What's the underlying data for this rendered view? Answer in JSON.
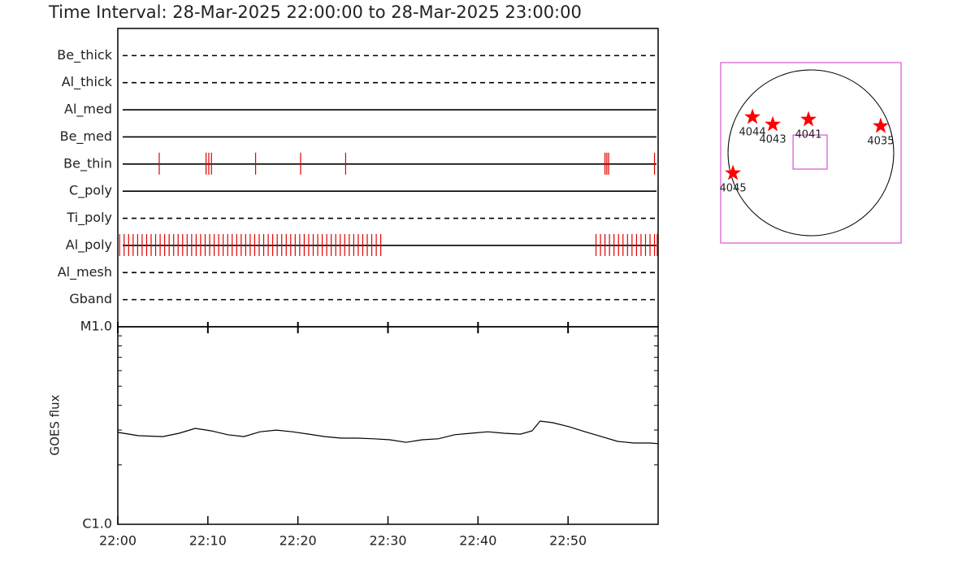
{
  "chart_data": [
    {
      "type": "timeline",
      "title": "Time Interval: 28-Mar-2025 22:00:00 to 28-Mar-2025 23:00:00",
      "xlim": [
        0,
        60
      ],
      "color": "#e00000",
      "rows": [
        {
          "name": "Be_thick",
          "style": "dashed",
          "x": []
        },
        {
          "name": "Al_thick",
          "style": "dashed",
          "x": []
        },
        {
          "name": "Al_med",
          "style": "solid",
          "x": []
        },
        {
          "name": "Be_med",
          "style": "solid",
          "x": []
        },
        {
          "name": "Be_thin",
          "style": "solid",
          "x": [
            4.6,
            9.8,
            10.1,
            10.4,
            15.3,
            20.3,
            25.3,
            54.1,
            54.3,
            54.5,
            59.6
          ]
        },
        {
          "name": "C_poly",
          "style": "solid",
          "x": []
        },
        {
          "name": "Ti_poly",
          "style": "dashed",
          "x": []
        },
        {
          "name": "Al_poly",
          "style": "solid",
          "x": [
            0.2,
            0.7,
            1.2,
            1.7,
            2.2,
            2.7,
            3.2,
            3.7,
            4.2,
            4.7,
            5.2,
            5.7,
            6.2,
            6.7,
            7.2,
            7.7,
            8.2,
            8.7,
            9.2,
            9.7,
            10.2,
            10.7,
            11.2,
            11.7,
            12.2,
            12.7,
            13.2,
            13.7,
            14.2,
            14.7,
            15.2,
            15.7,
            16.2,
            16.7,
            17.2,
            17.7,
            18.2,
            18.7,
            19.2,
            19.7,
            20.2,
            20.7,
            21.2,
            21.7,
            22.2,
            22.7,
            23.2,
            23.7,
            24.2,
            24.7,
            25.2,
            25.7,
            26.2,
            26.7,
            27.2,
            27.7,
            28.2,
            28.7,
            29.2,
            53.1,
            53.6,
            54.1,
            54.6,
            55.1,
            55.6,
            56.1,
            56.6,
            57.1,
            57.6,
            58.1,
            58.6,
            59.1,
            59.6,
            59.9
          ]
        },
        {
          "name": "Al_mesh",
          "style": "dashed",
          "x": []
        },
        {
          "name": "Gband",
          "style": "dashed",
          "x": []
        }
      ]
    },
    {
      "type": "line",
      "ylabel": "GOES flux",
      "log": true,
      "color": "#000000",
      "xlim": [
        0,
        60
      ],
      "xticks": [
        {
          "value": 0,
          "label": "22:00"
        },
        {
          "value": 10,
          "label": "22:10"
        },
        {
          "value": 20,
          "label": "22:20"
        },
        {
          "value": 30,
          "label": "22:30"
        },
        {
          "value": 40,
          "label": "22:40"
        },
        {
          "value": 50,
          "label": "22:50"
        }
      ],
      "ylim": [
        1e-06,
        1e-05
      ],
      "yticks": [
        {
          "value": 1e-06,
          "label": "C1.0"
        },
        {
          "value": 1e-05,
          "label": "M1.0"
        }
      ],
      "yminorticks": [
        2e-06,
        3e-06,
        4e-06,
        5e-06,
        6e-06,
        7e-06,
        8e-06,
        9e-06
      ],
      "x": [
        0,
        2.3,
        5.0,
        6.8,
        8.6,
        10.4,
        12.2,
        14.0,
        15.8,
        17.6,
        19.4,
        21.2,
        23.0,
        24.8,
        26.6,
        28.4,
        30.2,
        32.0,
        33.8,
        35.6,
        37.4,
        39.2,
        41.1,
        42.9,
        44.7,
        46.0,
        46.9,
        48.3,
        50.1,
        51.9,
        53.7,
        55.5,
        57.3,
        59.1,
        60
      ],
      "values": [
        2.92e-06,
        2.81e-06,
        2.78e-06,
        2.89e-06,
        3.06e-06,
        2.97e-06,
        2.84e-06,
        2.78e-06,
        2.94e-06,
        3e-06,
        2.94e-06,
        2.86e-06,
        2.78e-06,
        2.73e-06,
        2.73e-06,
        2.71e-06,
        2.68e-06,
        2.6e-06,
        2.68e-06,
        2.71e-06,
        2.84e-06,
        2.89e-06,
        2.94e-06,
        2.89e-06,
        2.86e-06,
        2.97e-06,
        3.33e-06,
        3.27e-06,
        3.12e-06,
        2.94e-06,
        2.78e-06,
        2.63e-06,
        2.58e-06,
        2.58e-06,
        2.56e-06
      ]
    },
    {
      "type": "map",
      "sun_radius": 960,
      "xlim": [
        -1045,
        1045
      ],
      "ylim": [
        -1045,
        1045
      ],
      "color": "#ff0000",
      "frame_color": "#cc33cc",
      "fov": {
        "x": -9,
        "y": 9,
        "width": 395,
        "height": 395
      },
      "points": [
        {
          "label": "4044",
          "x": -677,
          "y": 414
        },
        {
          "label": "4043",
          "x": -442,
          "y": 329
        },
        {
          "label": "4041",
          "x": -28,
          "y": 386
        },
        {
          "label": "4035",
          "x": 809,
          "y": 311
        },
        {
          "label": "4045",
          "x": -903,
          "y": -235
        }
      ]
    }
  ]
}
